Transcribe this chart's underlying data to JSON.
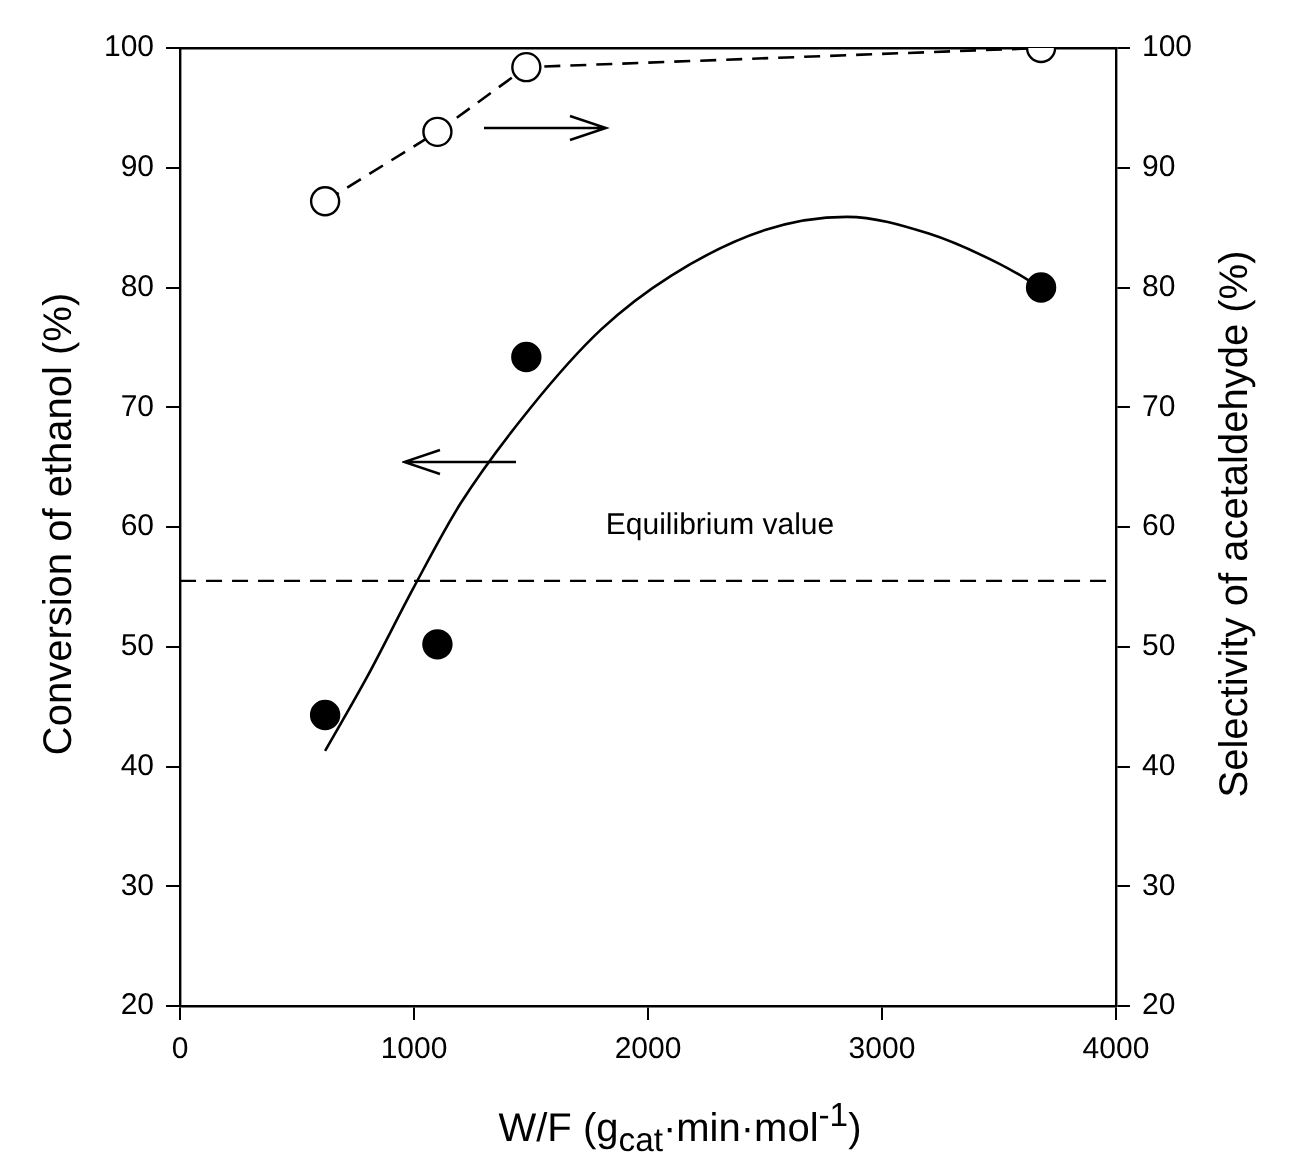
{
  "chart_data": {
    "type": "scatter",
    "xlabel": "W/F (g$_{cat}$·min·mol$^{-1}$)",
    "ylabel": "Conversion of ethanol (%)",
    "y2label": "Selectivity of acetaldehyde (%)",
    "xlim": [
      0,
      4000
    ],
    "xticks": [
      0,
      1000,
      2000,
      3000,
      4000
    ],
    "ylim": [
      20,
      100
    ],
    "yticks": [
      20,
      30,
      40,
      50,
      60,
      70,
      80,
      90,
      100
    ],
    "y2lim": [
      20,
      100
    ],
    "y2ticks": [
      20,
      30,
      40,
      50,
      60,
      70,
      80,
      90,
      100
    ],
    "grid": false,
    "legend": false,
    "series": [
      {
        "color": "#000000",
        "marker": "circle",
        "x": [
          620,
          1100,
          1480,
          3680
        ],
        "values": [
          44.3,
          50.2,
          74.2,
          80
        ]
      },
      {
        "type": "line",
        "color": "#000000",
        "marker": "none",
        "line_style": "solid",
        "x": [
          620,
          800,
          1000,
          1200,
          1500,
          1800,
          2100,
          2500,
          2850,
          3200,
          3500,
          3680
        ],
        "values": [
          41.3,
          47.5,
          55,
          62,
          70,
          76.5,
          81,
          84.8,
          85.9,
          84.5,
          82,
          80
        ]
      },
      {
        "type": "line",
        "axis": "y2",
        "color": "#000000",
        "marker": "circle",
        "line_style": "dashed",
        "x": [
          620,
          1100,
          1480,
          3680
        ],
        "values": [
          87.2,
          93,
          98.4,
          100
        ]
      }
    ],
    "ref_lines": [
      {
        "axis": "y",
        "value": 55.5,
        "label": "Equilibrium value",
        "line_style": "dashed",
        "color": "#000000"
      }
    ]
  }
}
